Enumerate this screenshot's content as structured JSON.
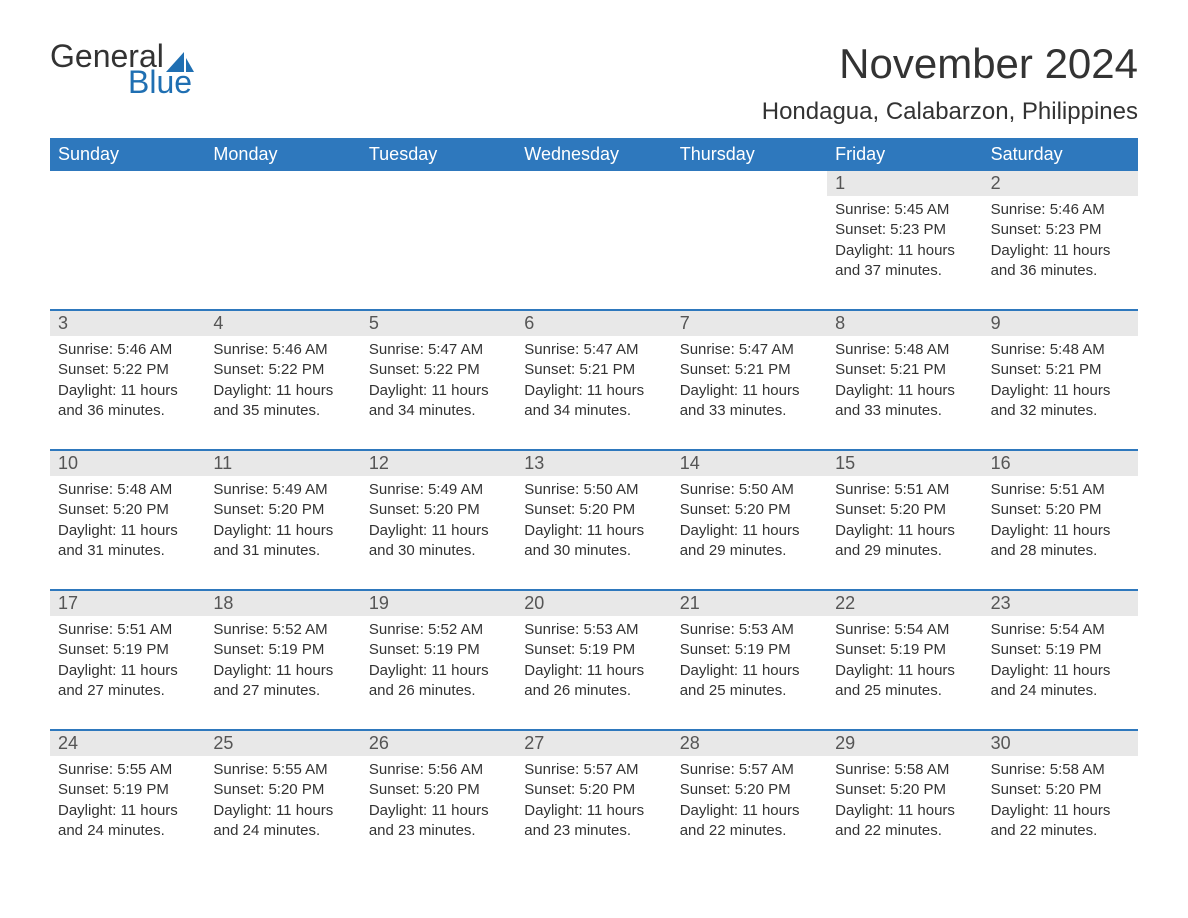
{
  "logo": {
    "general": "General",
    "blue": "Blue",
    "sail_color": "#1f6fb2"
  },
  "header": {
    "month_title": "November 2024",
    "location": "Hondagua, Calabarzon, Philippines"
  },
  "colors": {
    "header_bg": "#2e78bd",
    "header_text": "#ffffff",
    "row_divider": "#2e78bd",
    "daynum_bg": "#e8e8e8",
    "text": "#333333",
    "background": "#ffffff"
  },
  "fonts": {
    "family": "Arial",
    "month_title_size": 42,
    "location_size": 24,
    "dow_size": 18,
    "daynum_size": 18,
    "body_size": 15
  },
  "days_of_week": [
    "Sunday",
    "Monday",
    "Tuesday",
    "Wednesday",
    "Thursday",
    "Friday",
    "Saturday"
  ],
  "weeks": [
    [
      null,
      null,
      null,
      null,
      null,
      {
        "n": "1",
        "sunrise": "5:45 AM",
        "sunset": "5:23 PM",
        "daylight": "11 hours and 37 minutes."
      },
      {
        "n": "2",
        "sunrise": "5:46 AM",
        "sunset": "5:23 PM",
        "daylight": "11 hours and 36 minutes."
      }
    ],
    [
      {
        "n": "3",
        "sunrise": "5:46 AM",
        "sunset": "5:22 PM",
        "daylight": "11 hours and 36 minutes."
      },
      {
        "n": "4",
        "sunrise": "5:46 AM",
        "sunset": "5:22 PM",
        "daylight": "11 hours and 35 minutes."
      },
      {
        "n": "5",
        "sunrise": "5:47 AM",
        "sunset": "5:22 PM",
        "daylight": "11 hours and 34 minutes."
      },
      {
        "n": "6",
        "sunrise": "5:47 AM",
        "sunset": "5:21 PM",
        "daylight": "11 hours and 34 minutes."
      },
      {
        "n": "7",
        "sunrise": "5:47 AM",
        "sunset": "5:21 PM",
        "daylight": "11 hours and 33 minutes."
      },
      {
        "n": "8",
        "sunrise": "5:48 AM",
        "sunset": "5:21 PM",
        "daylight": "11 hours and 33 minutes."
      },
      {
        "n": "9",
        "sunrise": "5:48 AM",
        "sunset": "5:21 PM",
        "daylight": "11 hours and 32 minutes."
      }
    ],
    [
      {
        "n": "10",
        "sunrise": "5:48 AM",
        "sunset": "5:20 PM",
        "daylight": "11 hours and 31 minutes."
      },
      {
        "n": "11",
        "sunrise": "5:49 AM",
        "sunset": "5:20 PM",
        "daylight": "11 hours and 31 minutes."
      },
      {
        "n": "12",
        "sunrise": "5:49 AM",
        "sunset": "5:20 PM",
        "daylight": "11 hours and 30 minutes."
      },
      {
        "n": "13",
        "sunrise": "5:50 AM",
        "sunset": "5:20 PM",
        "daylight": "11 hours and 30 minutes."
      },
      {
        "n": "14",
        "sunrise": "5:50 AM",
        "sunset": "5:20 PM",
        "daylight": "11 hours and 29 minutes."
      },
      {
        "n": "15",
        "sunrise": "5:51 AM",
        "sunset": "5:20 PM",
        "daylight": "11 hours and 29 minutes."
      },
      {
        "n": "16",
        "sunrise": "5:51 AM",
        "sunset": "5:20 PM",
        "daylight": "11 hours and 28 minutes."
      }
    ],
    [
      {
        "n": "17",
        "sunrise": "5:51 AM",
        "sunset": "5:19 PM",
        "daylight": "11 hours and 27 minutes."
      },
      {
        "n": "18",
        "sunrise": "5:52 AM",
        "sunset": "5:19 PM",
        "daylight": "11 hours and 27 minutes."
      },
      {
        "n": "19",
        "sunrise": "5:52 AM",
        "sunset": "5:19 PM",
        "daylight": "11 hours and 26 minutes."
      },
      {
        "n": "20",
        "sunrise": "5:53 AM",
        "sunset": "5:19 PM",
        "daylight": "11 hours and 26 minutes."
      },
      {
        "n": "21",
        "sunrise": "5:53 AM",
        "sunset": "5:19 PM",
        "daylight": "11 hours and 25 minutes."
      },
      {
        "n": "22",
        "sunrise": "5:54 AM",
        "sunset": "5:19 PM",
        "daylight": "11 hours and 25 minutes."
      },
      {
        "n": "23",
        "sunrise": "5:54 AM",
        "sunset": "5:19 PM",
        "daylight": "11 hours and 24 minutes."
      }
    ],
    [
      {
        "n": "24",
        "sunrise": "5:55 AM",
        "sunset": "5:19 PM",
        "daylight": "11 hours and 24 minutes."
      },
      {
        "n": "25",
        "sunrise": "5:55 AM",
        "sunset": "5:20 PM",
        "daylight": "11 hours and 24 minutes."
      },
      {
        "n": "26",
        "sunrise": "5:56 AM",
        "sunset": "5:20 PM",
        "daylight": "11 hours and 23 minutes."
      },
      {
        "n": "27",
        "sunrise": "5:57 AM",
        "sunset": "5:20 PM",
        "daylight": "11 hours and 23 minutes."
      },
      {
        "n": "28",
        "sunrise": "5:57 AM",
        "sunset": "5:20 PM",
        "daylight": "11 hours and 22 minutes."
      },
      {
        "n": "29",
        "sunrise": "5:58 AM",
        "sunset": "5:20 PM",
        "daylight": "11 hours and 22 minutes."
      },
      {
        "n": "30",
        "sunrise": "5:58 AM",
        "sunset": "5:20 PM",
        "daylight": "11 hours and 22 minutes."
      }
    ]
  ],
  "labels": {
    "sunrise": "Sunrise: ",
    "sunset": "Sunset: ",
    "daylight": "Daylight: "
  }
}
